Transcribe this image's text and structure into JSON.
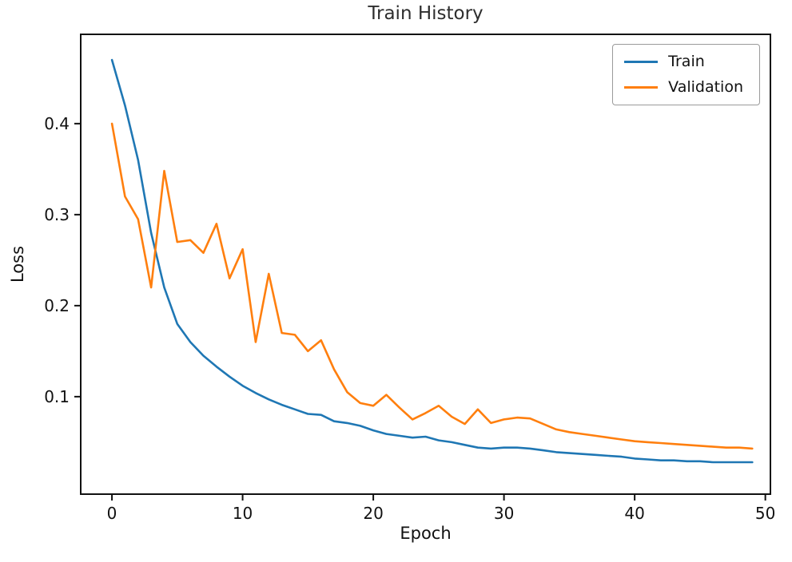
{
  "chart_data": {
    "type": "line",
    "title": "Train History",
    "xlabel": "Epoch",
    "ylabel": "Loss",
    "xlim": [
      -2.45,
      50.45
    ],
    "ylim": [
      -0.008,
      0.499
    ],
    "xticks": [
      0,
      10,
      20,
      30,
      40,
      50
    ],
    "yticks": [
      0.1,
      0.2,
      0.3,
      0.4
    ],
    "grid": false,
    "legend_position": "upper right",
    "x": [
      0,
      1,
      2,
      3,
      4,
      5,
      6,
      7,
      8,
      9,
      10,
      11,
      12,
      13,
      14,
      15,
      16,
      17,
      18,
      19,
      20,
      21,
      22,
      23,
      24,
      25,
      26,
      27,
      28,
      29,
      30,
      31,
      32,
      33,
      34,
      35,
      36,
      37,
      38,
      39,
      40,
      41,
      42,
      43,
      44,
      45,
      46,
      47,
      48,
      49
    ],
    "series": [
      {
        "name": "Train",
        "color": "#1f77b4",
        "values": [
          0.47,
          0.42,
          0.36,
          0.28,
          0.22,
          0.18,
          0.16,
          0.145,
          0.133,
          0.122,
          0.112,
          0.104,
          0.097,
          0.091,
          0.086,
          0.081,
          0.08,
          0.073,
          0.071,
          0.068,
          0.063,
          0.059,
          0.057,
          0.055,
          0.056,
          0.052,
          0.05,
          0.047,
          0.044,
          0.043,
          0.044,
          0.044,
          0.043,
          0.041,
          0.039,
          0.038,
          0.037,
          0.036,
          0.035,
          0.034,
          0.032,
          0.031,
          0.03,
          0.03,
          0.029,
          0.029,
          0.028,
          0.028,
          0.028,
          0.028
        ]
      },
      {
        "name": "Validation",
        "color": "#ff7f0e",
        "values": [
          0.4,
          0.32,
          0.295,
          0.22,
          0.348,
          0.27,
          0.272,
          0.258,
          0.29,
          0.23,
          0.262,
          0.16,
          0.235,
          0.17,
          0.168,
          0.15,
          0.162,
          0.13,
          0.105,
          0.093,
          0.09,
          0.102,
          0.088,
          0.075,
          0.082,
          0.09,
          0.078,
          0.07,
          0.086,
          0.071,
          0.075,
          0.077,
          0.076,
          0.07,
          0.064,
          0.061,
          0.059,
          0.057,
          0.055,
          0.053,
          0.051,
          0.05,
          0.049,
          0.048,
          0.047,
          0.046,
          0.045,
          0.044,
          0.044,
          0.043
        ]
      }
    ]
  }
}
